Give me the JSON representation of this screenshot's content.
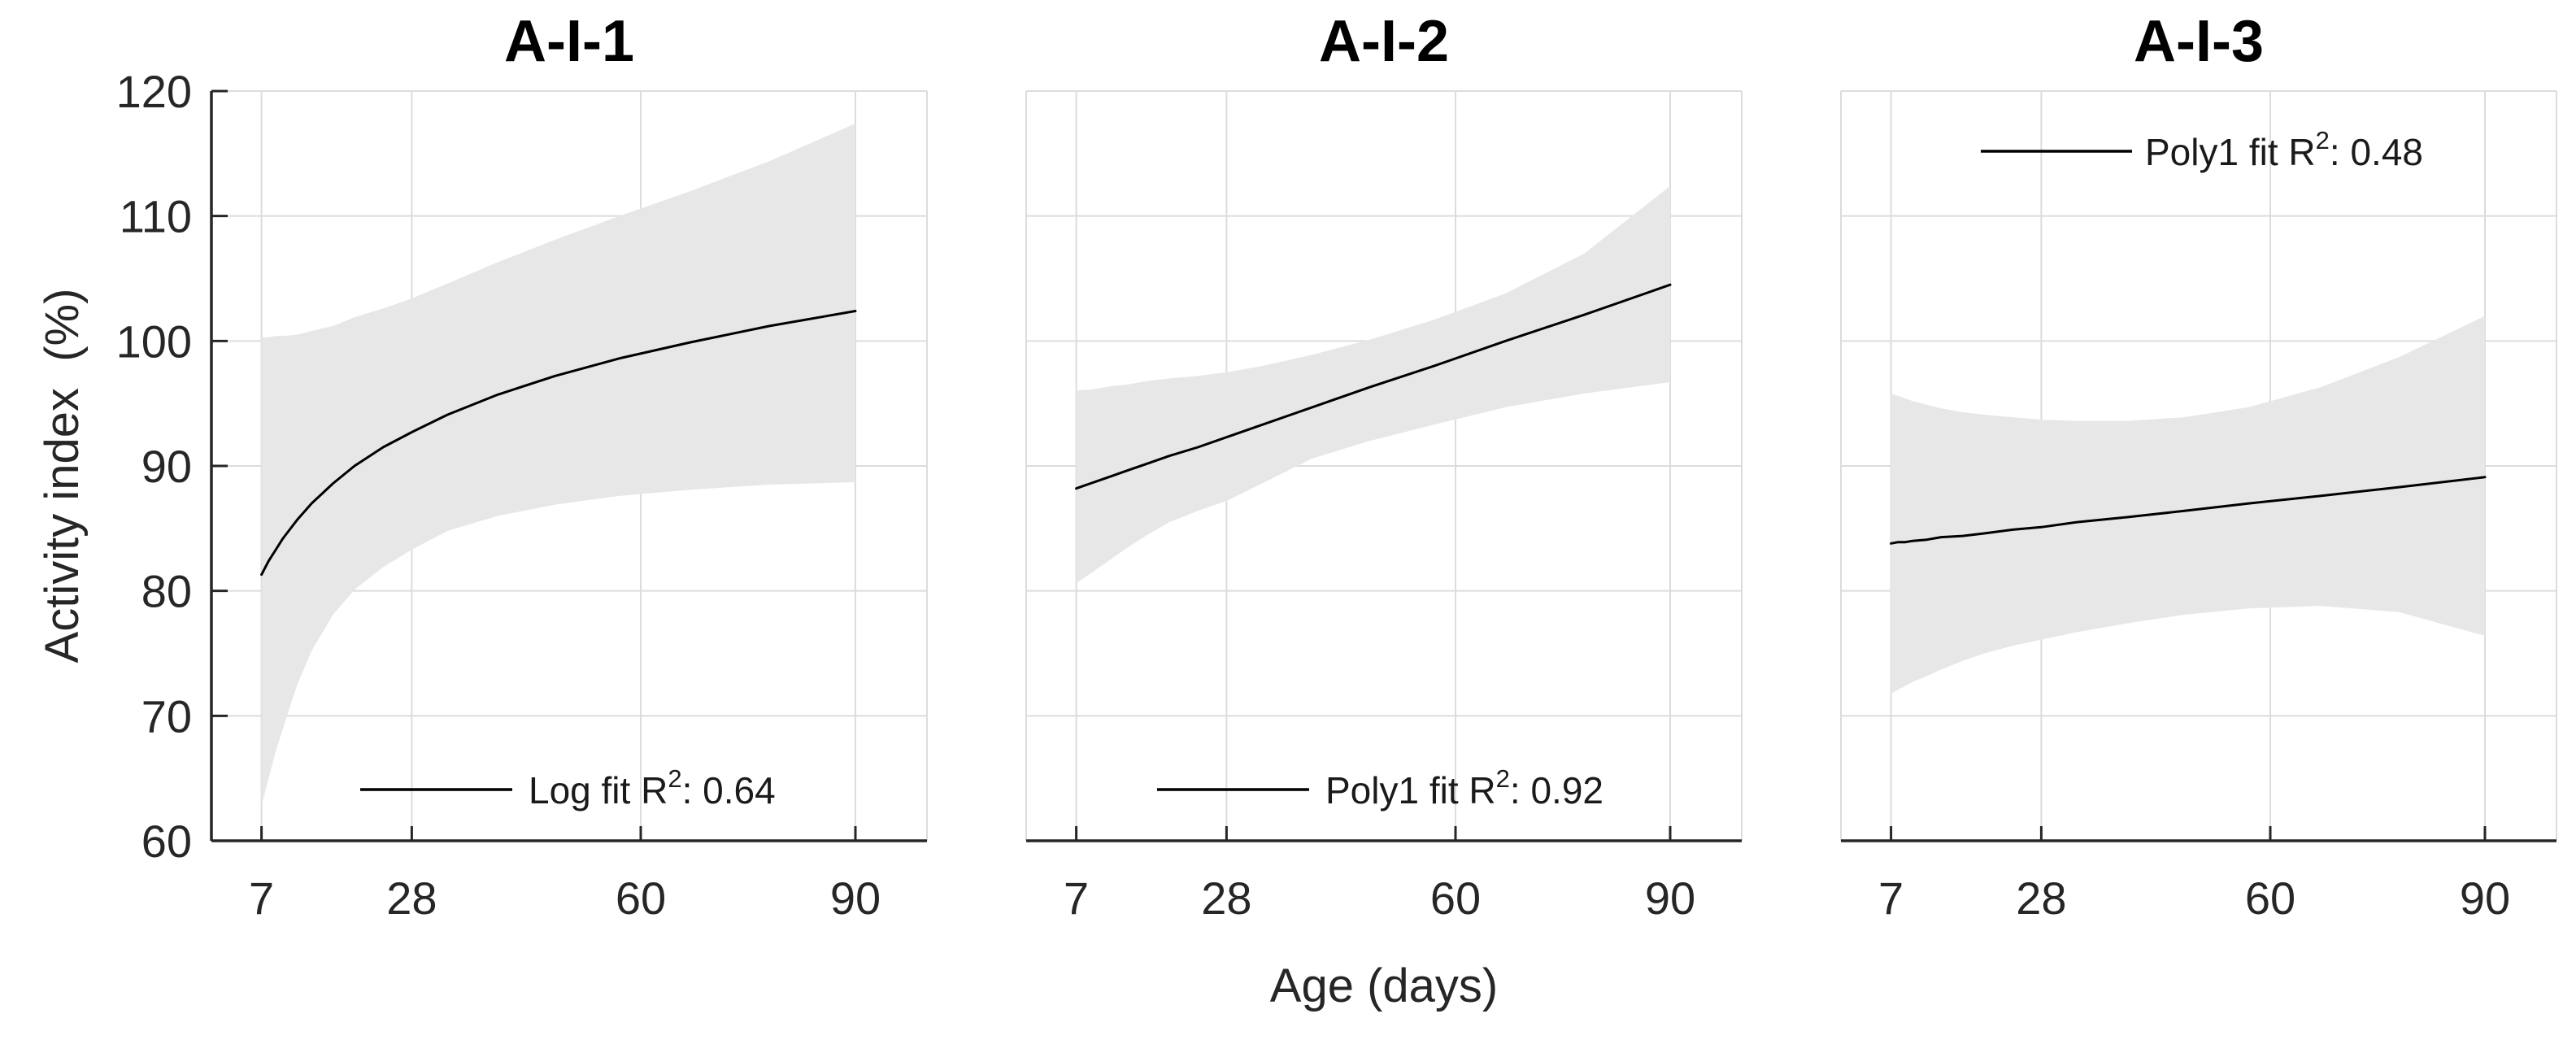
{
  "figure": {
    "xlabel": "Age (days)",
    "ylabel": "Activity index  (%)",
    "background_color": "#ffffff",
    "band_color": "#e7e7e7",
    "grid_color": "#dcdcdc",
    "axis_color": "#262626",
    "line_color": "#000000"
  },
  "chart_data": [
    {
      "type": "line",
      "title": "A-I-1",
      "fit_type": "Log",
      "r_squared": 0.64,
      "legend": {
        "prefix": "Log fit R",
        "sup": "2",
        "suffix": ": 0.64"
      },
      "legend_position": "bottom-center",
      "grid": true,
      "xlim": [
        0,
        100
      ],
      "ylim": [
        60,
        120
      ],
      "xticks": [
        7,
        28,
        60,
        90
      ],
      "yticks": [
        60,
        70,
        80,
        90,
        100,
        110,
        120
      ],
      "fit": {
        "x": [
          7,
          8,
          9,
          10,
          12,
          14,
          17,
          20,
          24,
          28,
          33,
          40,
          48,
          57,
          67,
          78,
          90
        ],
        "y": [
          81.3,
          82.4,
          83.3,
          84.2,
          85.7,
          87.0,
          88.6,
          90.0,
          91.5,
          92.7,
          94.1,
          95.7,
          97.2,
          98.6,
          99.9,
          101.2,
          102.4
        ]
      },
      "band": {
        "x": [
          7,
          8,
          9,
          10,
          12,
          14,
          17,
          20,
          24,
          28,
          33,
          40,
          48,
          57,
          67,
          78,
          90
        ],
        "upper": [
          100.3,
          100.3,
          100.4,
          100.4,
          100.5,
          100.8,
          101.2,
          101.9,
          102.6,
          103.4,
          104.6,
          106.3,
          108.1,
          110.0,
          112.0,
          114.4,
          117.4
        ],
        "lower": [
          62.8,
          65.0,
          67.2,
          69.0,
          72.5,
          75.2,
          78.1,
          80.1,
          81.9,
          83.3,
          84.8,
          86.0,
          86.9,
          87.6,
          88.1,
          88.5,
          88.7
        ]
      }
    },
    {
      "type": "line",
      "title": "A-I-2",
      "fit_type": "Poly1",
      "r_squared": 0.92,
      "legend": {
        "prefix": "Poly1 fit R",
        "sup": "2",
        "suffix": ": 0.92"
      },
      "legend_position": "bottom-center",
      "grid": true,
      "xlim": [
        0,
        100
      ],
      "ylim": [
        60,
        120
      ],
      "xticks": [
        7,
        28,
        60,
        90
      ],
      "yticks": [
        60,
        70,
        80,
        90,
        100,
        110,
        120
      ],
      "fit": {
        "x": [
          7,
          8,
          9,
          10,
          12,
          14,
          17,
          20,
          24,
          28,
          33,
          40,
          48,
          57,
          67,
          78,
          90
        ],
        "y": [
          88.2,
          88.4,
          88.6,
          88.8,
          89.2,
          89.6,
          90.2,
          90.8,
          91.5,
          92.3,
          93.3,
          94.7,
          96.3,
          98.0,
          100.0,
          102.1,
          104.5
        ]
      },
      "band": {
        "x": [
          7,
          8,
          9,
          10,
          12,
          14,
          17,
          20,
          24,
          28,
          33,
          40,
          48,
          57,
          67,
          78,
          90
        ],
        "upper": [
          96.0,
          96.1,
          96.1,
          96.2,
          96.4,
          96.5,
          96.8,
          97.0,
          97.2,
          97.5,
          98.0,
          98.9,
          100.1,
          101.7,
          103.8,
          107.0,
          112.4
        ],
        "lower": [
          80.6,
          81.0,
          81.4,
          81.8,
          82.6,
          83.4,
          84.5,
          85.5,
          86.4,
          87.2,
          88.6,
          90.6,
          92.0,
          93.3,
          94.7,
          95.8,
          96.7
        ]
      }
    },
    {
      "type": "line",
      "title": "A-I-3",
      "fit_type": "Poly1",
      "r_squared": 0.48,
      "legend": {
        "prefix": "Poly1 fit R",
        "sup": "2",
        "suffix": ": 0.48"
      },
      "legend_position": "top-center",
      "grid": true,
      "xlim": [
        0,
        100
      ],
      "ylim": [
        60,
        120
      ],
      "xticks": [
        7,
        28,
        60,
        90
      ],
      "yticks": [
        60,
        70,
        80,
        90,
        100,
        110,
        120
      ],
      "fit": {
        "x": [
          7,
          8,
          9,
          10,
          12,
          14,
          17,
          20,
          24,
          28,
          33,
          40,
          48,
          57,
          67,
          78,
          90
        ],
        "y": [
          83.8,
          83.9,
          83.9,
          84.0,
          84.1,
          84.3,
          84.4,
          84.6,
          84.9,
          85.1,
          85.5,
          85.9,
          86.4,
          87.0,
          87.6,
          88.3,
          89.1
        ]
      },
      "band": {
        "x": [
          7,
          8,
          9,
          10,
          12,
          14,
          17,
          20,
          24,
          28,
          33,
          40,
          48,
          57,
          67,
          78,
          90
        ],
        "upper": [
          95.8,
          95.6,
          95.4,
          95.2,
          94.9,
          94.6,
          94.3,
          94.1,
          93.9,
          93.7,
          93.6,
          93.6,
          93.9,
          94.7,
          96.3,
          98.7,
          102.0
        ],
        "lower": [
          71.8,
          72.1,
          72.4,
          72.7,
          73.2,
          73.7,
          74.4,
          75.0,
          75.6,
          76.1,
          76.7,
          77.4,
          78.1,
          78.6,
          78.8,
          78.3,
          76.4
        ]
      }
    }
  ]
}
